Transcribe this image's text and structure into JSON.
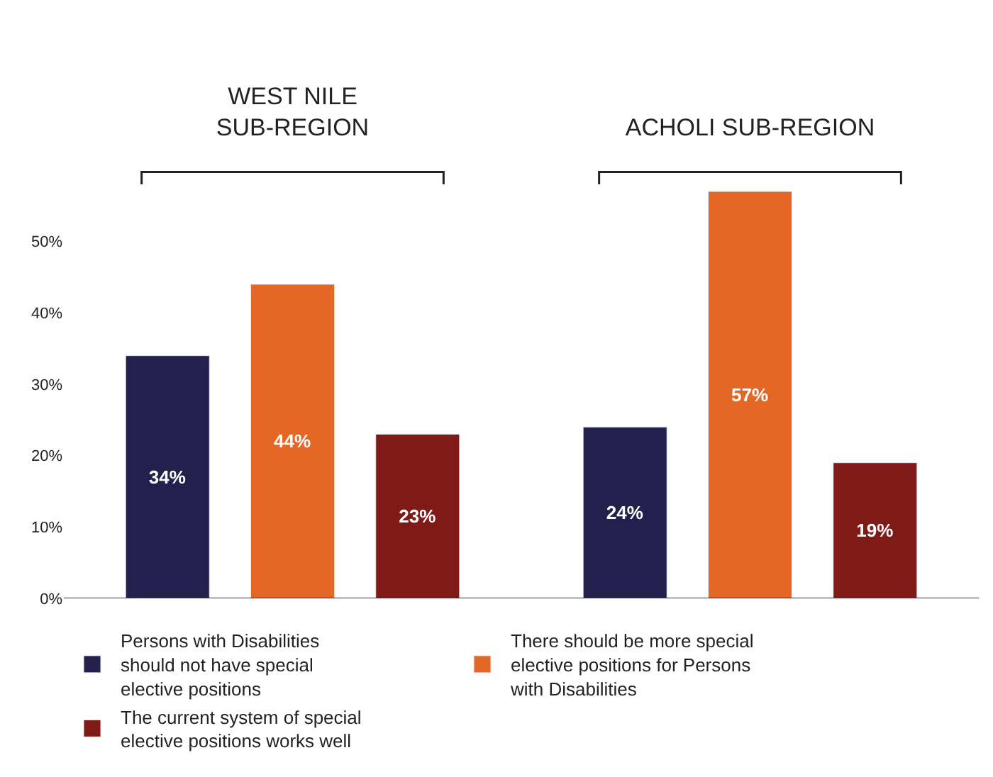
{
  "chart_data": {
    "type": "bar",
    "categories": [
      "WEST NILE\nSUB-REGION",
      "ACHOLI SUB-REGION"
    ],
    "series": [
      {
        "name": "Persons with Disabilities should not have special elective positions",
        "color": "#23204d",
        "values": [
          34,
          24
        ],
        "value_labels": [
          "34%",
          "24%"
        ]
      },
      {
        "name": "There should be more special elective positions for Persons with Disabilities",
        "color": "#e56726",
        "values": [
          44,
          57
        ],
        "value_labels": [
          "44%",
          "57%"
        ]
      },
      {
        "name": "The current system of special elective positions works well",
        "color": "#7f1a17",
        "values": [
          23,
          19
        ],
        "value_labels": [
          "23%",
          "19%"
        ]
      }
    ],
    "ylim": [
      0,
      58
    ],
    "yticks": [
      {
        "value": 0,
        "label": "0%"
      },
      {
        "value": 10,
        "label": "10%"
      },
      {
        "value": 20,
        "label": "20%"
      },
      {
        "value": 30,
        "label": "30%"
      },
      {
        "value": 40,
        "label": "40%"
      },
      {
        "value": 50,
        "label": "50%"
      }
    ],
    "legend": "bottom"
  }
}
